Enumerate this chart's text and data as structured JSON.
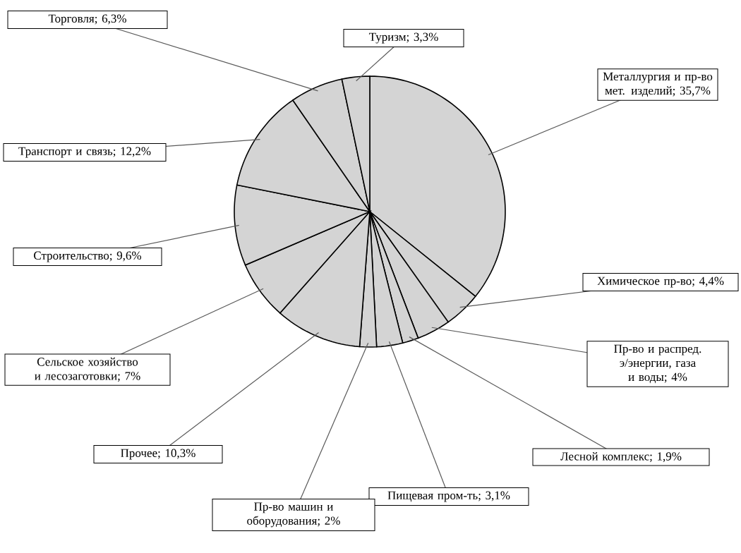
{
  "chart_data": {
    "type": "pie",
    "categories": [
      "Металлургия и пр-во мет. изделий; 35,7%",
      "Химическое пр-во; 4,4%",
      "Пр-во и распред. э/энергии, газа и воды; 4%",
      "Лесной комплекс; 1,9%",
      "Пищевая пром-ть; 3,1%",
      "Пр-во машин и оборудования; 2%",
      "Прочее; 10,3%",
      "Сельское хозяйство и лесозаготовки; 7%",
      "Строительство; 9,6%",
      "Транспорт и связь; 12,2%",
      "Торговля; 6,3%",
      "Туризм; 3,3%"
    ],
    "values": [
      35.7,
      4.4,
      4,
      1.9,
      3.1,
      2,
      10.3,
      7,
      9.6,
      12.2,
      6.3,
      3.3
    ],
    "colors": [
      "#d4d4d4",
      "#d4d4d4",
      "#d4d4d4",
      "#d4d4d4",
      "#d4d4d4",
      "#d4d4d4",
      "#d4d4d4",
      "#d4d4d4",
      "#d4d4d4",
      "#d4d4d4",
      "#d4d4d4",
      "#d4d4d4"
    ]
  }
}
